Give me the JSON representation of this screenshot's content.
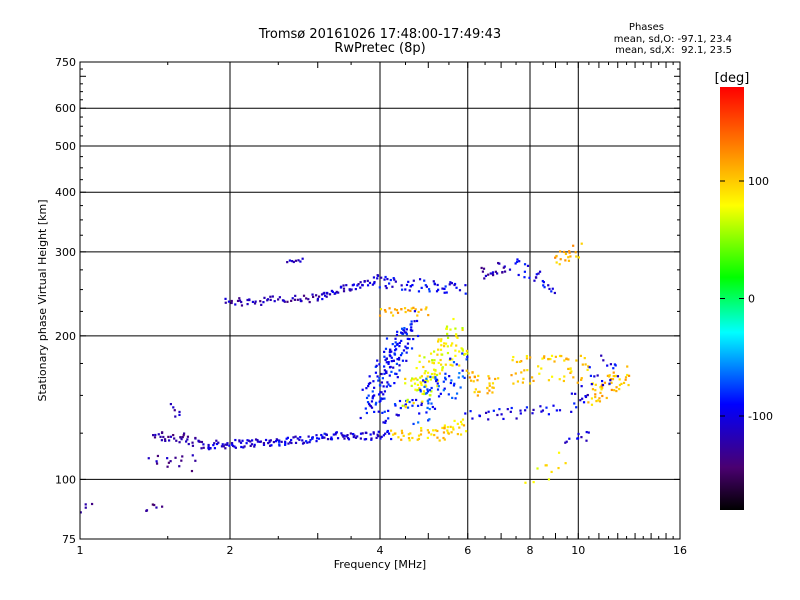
{
  "chart_data": {
    "type": "scatter",
    "title": "Tromsø 20161026 17:48:00-17:49:43",
    "subtitle": "RwPretec (8p)",
    "xlabel": "Frequency [MHz]",
    "ylabel": "Stationary phase Virtual Height [km]",
    "x_scale": "log",
    "y_scale": "log",
    "xlim": [
      1,
      16
    ],
    "ylim": [
      75,
      750
    ],
    "x_ticks": [
      1,
      2,
      4,
      6,
      8,
      10,
      16
    ],
    "y_ticks": [
      75,
      100,
      200,
      300,
      400,
      500,
      600,
      750
    ],
    "grid": true,
    "stats": {
      "heading": "Phases",
      "line_o": "mean, sd,O: -97.1, 23.4",
      "line_x": "mean, sd,X:  92.1, 23.5"
    },
    "colorbar": {
      "label": "[deg]",
      "range": [
        -180,
        180
      ],
      "ticks": [
        100,
        0,
        -100
      ],
      "colormap": "rainbow"
    },
    "point_groups": [
      {
        "from": [
          1.0,
          86
        ],
        "to": [
          1.05,
          88
        ],
        "n": 4,
        "phase": -130,
        "scatter": 0.02
      },
      {
        "from": [
          1.35,
          87
        ],
        "to": [
          1.45,
          88
        ],
        "n": 6,
        "phase": -135,
        "scatter": 0.02
      },
      {
        "from": [
          1.4,
          125
        ],
        "to": [
          1.8,
          118
        ],
        "n": 40,
        "phase": -125,
        "scatter": 0.03
      },
      {
        "from": [
          1.8,
          118
        ],
        "to": [
          2.5,
          120
        ],
        "n": 60,
        "phase": -110,
        "scatter": 0.02
      },
      {
        "from": [
          2.5,
          120
        ],
        "to": [
          3.5,
          124
        ],
        "n": 60,
        "phase": -100,
        "scatter": 0.02
      },
      {
        "from": [
          3.5,
          123
        ],
        "to": [
          4.2,
          124
        ],
        "n": 30,
        "phase": -105,
        "scatter": 0.02
      },
      {
        "from": [
          4.2,
          123
        ],
        "to": [
          5.3,
          126
        ],
        "n": 30,
        "phase": 95,
        "scatter": 0.03
      },
      {
        "from": [
          5.3,
          125
        ],
        "to": [
          5.9,
          130
        ],
        "n": 25,
        "phase": 100,
        "scatter": 0.04
      },
      {
        "from": [
          4.0,
          135
        ],
        "to": [
          5.0,
          150
        ],
        "n": 30,
        "phase": -90,
        "scatter": 0.04
      },
      {
        "from": [
          1.4,
          110
        ],
        "to": [
          1.7,
          108
        ],
        "n": 15,
        "phase": -125,
        "scatter": 0.04
      },
      {
        "from": [
          1.5,
          140
        ],
        "to": [
          1.6,
          138
        ],
        "n": 6,
        "phase": -120,
        "scatter": 0.03
      },
      {
        "from": [
          1.95,
          235
        ],
        "to": [
          3.0,
          240
        ],
        "n": 50,
        "phase": -120,
        "scatter": 0.02
      },
      {
        "from": [
          3.0,
          240
        ],
        "to": [
          4.0,
          265
        ],
        "n": 50,
        "phase": -110,
        "scatter": 0.02
      },
      {
        "from": [
          4.0,
          260
        ],
        "to": [
          5.9,
          250
        ],
        "n": 50,
        "phase": -95,
        "scatter": 0.03
      },
      {
        "from": [
          4.0,
          225
        ],
        "to": [
          5.0,
          225
        ],
        "n": 25,
        "phase": 110,
        "scatter": 0.02
      },
      {
        "from": [
          2.6,
          285
        ],
        "to": [
          2.8,
          288
        ],
        "n": 8,
        "phase": -120,
        "scatter": 0.01
      },
      {
        "from": [
          3.8,
          145
        ],
        "to": [
          4.6,
          210
        ],
        "n": 150,
        "phase": -90,
        "scatter": 0.08
      },
      {
        "from": [
          4.6,
          150
        ],
        "to": [
          5.8,
          200
        ],
        "n": 120,
        "phase": 80,
        "scatter": 0.09
      },
      {
        "from": [
          4.8,
          140
        ],
        "to": [
          5.8,
          170
        ],
        "n": 60,
        "phase": -80,
        "scatter": 0.09
      },
      {
        "from": [
          6.0,
          160
        ],
        "to": [
          6.8,
          155
        ],
        "n": 30,
        "phase": 110,
        "scatter": 0.06
      },
      {
        "from": [
          6.0,
          135
        ],
        "to": [
          9.0,
          140
        ],
        "n": 30,
        "phase": -100,
        "scatter": 0.03
      },
      {
        "from": [
          7.3,
          170
        ],
        "to": [
          10.5,
          170
        ],
        "n": 60,
        "phase": 100,
        "scatter": 0.07
      },
      {
        "from": [
          10.5,
          150
        ],
        "to": [
          12.5,
          165
        ],
        "n": 50,
        "phase": 105,
        "scatter": 0.05
      },
      {
        "from": [
          9.5,
          140
        ],
        "to": [
          12.0,
          180
        ],
        "n": 30,
        "phase": -100,
        "scatter": 0.07
      },
      {
        "from": [
          6.4,
          270
        ],
        "to": [
          7.2,
          280
        ],
        "n": 20,
        "phase": -120,
        "scatter": 0.03
      },
      {
        "from": [
          7.5,
          280
        ],
        "to": [
          9.0,
          255
        ],
        "n": 25,
        "phase": -100,
        "scatter": 0.04
      },
      {
        "from": [
          9.0,
          285
        ],
        "to": [
          10.0,
          300
        ],
        "n": 20,
        "phase": 110,
        "scatter": 0.04
      },
      {
        "from": [
          8.0,
          100
        ],
        "to": [
          9.5,
          110
        ],
        "n": 10,
        "phase": 80,
        "scatter": 0.05
      },
      {
        "from": [
          9.5,
          120
        ],
        "to": [
          10.5,
          125
        ],
        "n": 10,
        "phase": -110,
        "scatter": 0.03
      }
    ]
  }
}
